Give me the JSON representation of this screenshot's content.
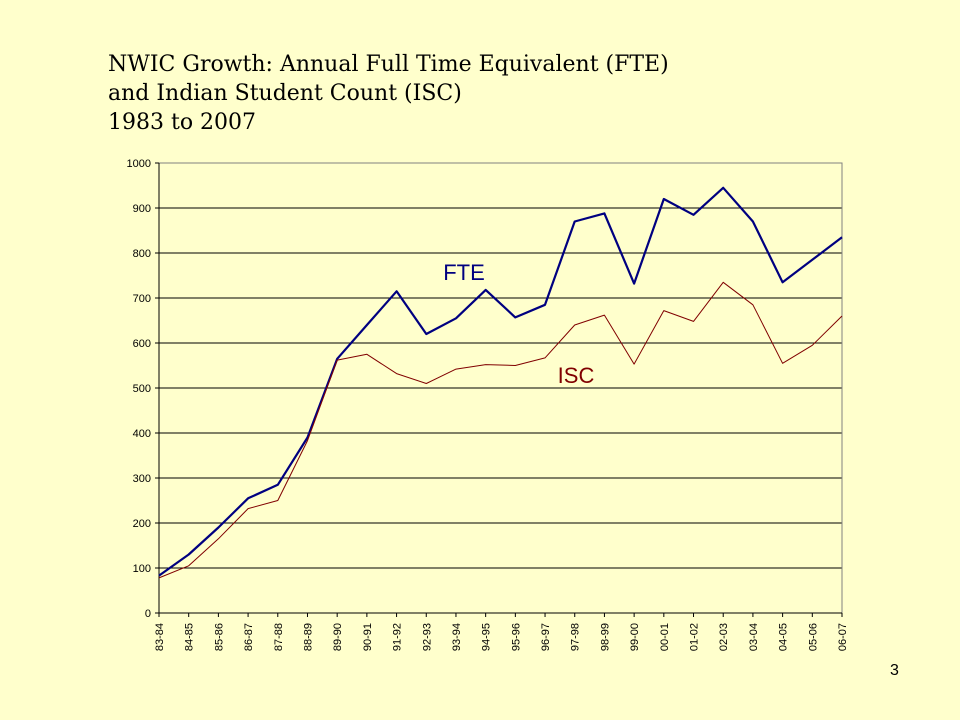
{
  "title": {
    "line1": "NWIC Growth: Annual Full Time Equivalent (FTE)",
    "line2": "and Indian Student Count (ISC)",
    "line3": "1983 to 2007"
  },
  "page_number": "3",
  "chart_data": {
    "type": "line",
    "categories": [
      "83-84",
      "84-85",
      "85-86",
      "86-87",
      "87-88",
      "88-89",
      "89-90",
      "90-91",
      "91-92",
      "92-93",
      "93-94",
      "94-95",
      "95-96",
      "96-97",
      "97-98",
      "98-99",
      "99-00",
      "00-01",
      "01-02",
      "02-03",
      "03-04",
      "04-05",
      "05-06",
      "06-07"
    ],
    "ylim": [
      0,
      1000
    ],
    "yticks": [
      0,
      100,
      200,
      300,
      400,
      500,
      600,
      700,
      800,
      900,
      1000
    ],
    "grid": true,
    "series": [
      {
        "name": "FTE",
        "color": "#000080",
        "values": [
          83,
          130,
          190,
          255,
          285,
          390,
          565,
          640,
          715,
          620,
          655,
          718,
          657,
          685,
          870,
          888,
          732,
          920,
          885,
          945,
          870,
          735,
          785,
          835
        ]
      },
      {
        "name": "ISC",
        "color": "#800000",
        "values": [
          78,
          105,
          165,
          232,
          250,
          383,
          562,
          575,
          532,
          510,
          542,
          552,
          550,
          567,
          640,
          662,
          553,
          672,
          648,
          735,
          685,
          555,
          595,
          660
        ]
      }
    ]
  }
}
